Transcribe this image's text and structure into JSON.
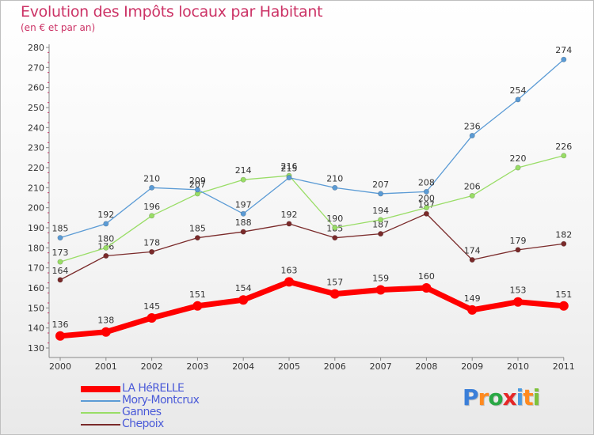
{
  "chart_data": {
    "type": "line",
    "title": "Evolution des Impôts locaux par Habitant",
    "subtitle": "(en € et par an)",
    "xlabel": "",
    "ylabel": "",
    "ylim": [
      130,
      280
    ],
    "yticks": [
      130,
      140,
      150,
      160,
      170,
      180,
      190,
      200,
      210,
      220,
      230,
      240,
      250,
      260,
      270,
      280
    ],
    "categories": [
      "2000",
      "2001",
      "2002",
      "2003",
      "2004",
      "2005",
      "2006",
      "2007",
      "2008",
      "2009",
      "2010",
      "2011"
    ],
    "grid": false,
    "legend_position": "bottom-left",
    "series": [
      {
        "name": "Chepoix",
        "color": "#7a2a2a",
        "values": [
          164,
          176,
          178,
          185,
          188,
          192,
          185,
          187,
          197,
          174,
          179,
          182
        ]
      },
      {
        "name": "Gannes",
        "color": "#99dd66",
        "values": [
          173,
          180,
          196,
          207,
          214,
          216,
          190,
          194,
          200,
          206,
          220,
          226
        ]
      },
      {
        "name": "Mory-Montcrux",
        "color": "#5b9bd5",
        "values": [
          185,
          192,
          210,
          209,
          197,
          215,
          210,
          207,
          208,
          236,
          254,
          274
        ]
      },
      {
        "name": "LA HéRELLE",
        "color": "#ff0000",
        "values": [
          136,
          138,
          145,
          151,
          154,
          163,
          157,
          159,
          160,
          149,
          153,
          151
        ]
      }
    ]
  },
  "legend": [
    {
      "label": "LA HéRELLE",
      "color": "#ff0000"
    },
    {
      "label": "Mory-Montcrux",
      "color": "#5b9bd5"
    },
    {
      "label": "Gannes",
      "color": "#99dd66"
    },
    {
      "label": "Chepoix",
      "color": "#7a2a2a"
    }
  ],
  "logo": {
    "letters": [
      "P",
      "r",
      "o",
      "x",
      "i",
      "t",
      "i"
    ],
    "colors": [
      "#3b7fd9",
      "#ff8a1f",
      "#2aa845",
      "#e52727",
      "#4a9ae0",
      "#ff8a1f",
      "#7ec23a"
    ]
  }
}
